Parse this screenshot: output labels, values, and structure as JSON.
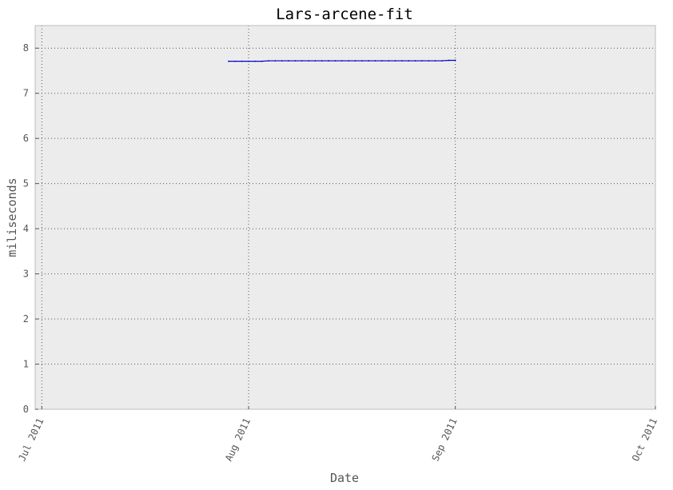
{
  "chart_data": {
    "type": "line",
    "title": "Lars-arcene-fit",
    "xlabel": "Date",
    "ylabel": "miliseconds",
    "x_type": "date",
    "xlim": [
      "2011-06-30",
      "2011-10-01"
    ],
    "ylim": [
      0,
      8.5
    ],
    "x_ticks": [
      {
        "date": "2011-07-01",
        "label": "Jul 2011"
      },
      {
        "date": "2011-08-01",
        "label": "Aug 2011"
      },
      {
        "date": "2011-09-01",
        "label": "Sep 2011"
      },
      {
        "date": "2011-10-01",
        "label": "Oct 2011"
      }
    ],
    "y_ticks": [
      0,
      1,
      2,
      3,
      4,
      5,
      6,
      7,
      8
    ],
    "grid": true,
    "colors": {
      "series": "#0000cc",
      "plot_background": "#ececec",
      "grid": "#555555",
      "frame": "#bcbcbc"
    },
    "series": [
      {
        "x": [
          "2011-07-29",
          "2011-07-30",
          "2011-07-31",
          "2011-08-01",
          "2011-08-02",
          "2011-08-03",
          "2011-08-04",
          "2011-08-05",
          "2011-08-06",
          "2011-08-07",
          "2011-08-08",
          "2011-08-09",
          "2011-08-10",
          "2011-08-11",
          "2011-08-12",
          "2011-08-13",
          "2011-08-14",
          "2011-08-15",
          "2011-08-16",
          "2011-08-17",
          "2011-08-18",
          "2011-08-19",
          "2011-08-20",
          "2011-08-21",
          "2011-08-22",
          "2011-08-23",
          "2011-08-24",
          "2011-08-25",
          "2011-08-26",
          "2011-08-27",
          "2011-08-28",
          "2011-08-29",
          "2011-08-30",
          "2011-08-31",
          "2011-09-01"
        ],
        "values": [
          7.71,
          7.71,
          7.71,
          7.71,
          7.71,
          7.71,
          7.72,
          7.72,
          7.72,
          7.72,
          7.72,
          7.72,
          7.72,
          7.72,
          7.72,
          7.72,
          7.72,
          7.72,
          7.72,
          7.72,
          7.72,
          7.72,
          7.72,
          7.72,
          7.72,
          7.72,
          7.72,
          7.72,
          7.72,
          7.72,
          7.72,
          7.72,
          7.72,
          7.73,
          7.73
        ]
      }
    ]
  }
}
